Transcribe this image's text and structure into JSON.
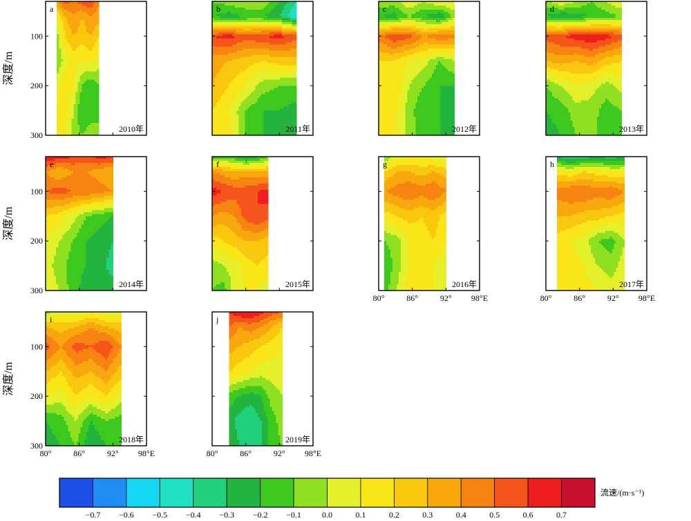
{
  "chart_data": {
    "type": "heatmap",
    "description_units": "zonal velocity",
    "ylabel": "深度/m",
    "x_ticks": [
      "80°",
      "86°",
      "92°",
      "98°E"
    ],
    "x_range": [
      80,
      98
    ],
    "y_ticks": [
      "100",
      "200",
      "300"
    ],
    "y_range": [
      30,
      300
    ],
    "y_inverted": true,
    "colorbar": {
      "label": "流速/(m·s⁻¹)",
      "ticks": [
        "−0.7",
        "−0.6",
        "−0.5",
        "−0.4",
        "−0.3",
        "−0.2",
        "−0.1",
        "0.0",
        "0.1",
        "0.2",
        "0.3",
        "0.4",
        "0.5",
        "0.6",
        "0.7"
      ],
      "levels": [
        -0.8,
        -0.7,
        -0.6,
        -0.5,
        -0.4,
        -0.3,
        -0.2,
        -0.1,
        0.0,
        0.1,
        0.2,
        0.3,
        0.4,
        0.5,
        0.6,
        0.7,
        0.8
      ],
      "colors": [
        "#1c4fe6",
        "#1e8ef6",
        "#14d6f2",
        "#1fe0c2",
        "#21d07c",
        "#22b43e",
        "#3cc81c",
        "#8ee020",
        "#e4f02a",
        "#f8e619",
        "#f9c80e",
        "#f8a80c",
        "#f78410",
        "#f5541b",
        "#ef1d1d",
        "#c8102c"
      ]
    },
    "panels": [
      {
        "label": "a",
        "year": "2010年",
        "lon_range": [
          82,
          89.5
        ],
        "depth": [
          30,
          60,
          100,
          150,
          200,
          250,
          300
        ],
        "lon": [
          82,
          83.5,
          85,
          86.5,
          88,
          89.5
        ],
        "values": [
          [
            0.4,
            0.55,
            0.45,
            0.55,
            0.6,
            0.4
          ],
          [
            0.1,
            0.3,
            0.4,
            0.3,
            0.4,
            0.35
          ],
          [
            -0.05,
            0.2,
            0.3,
            0.25,
            0.3,
            0.2
          ],
          [
            -0.1,
            0.05,
            0.15,
            0.1,
            0.15,
            0.05
          ],
          [
            0.05,
            0.2,
            0.1,
            -0.1,
            -0.2,
            -0.1
          ],
          [
            0.1,
            0.15,
            0.0,
            -0.2,
            -0.15,
            -0.1
          ],
          [
            0.1,
            0.1,
            -0.05,
            -0.1,
            -0.05,
            -0.1
          ]
        ]
      },
      {
        "label": "b",
        "year": "2011年",
        "lon_range": [
          80,
          95
        ],
        "depth": [
          30,
          60,
          100,
          150,
          200,
          250,
          300
        ],
        "lon": [
          80,
          83,
          86,
          89,
          92,
          95
        ],
        "values": [
          [
            -0.1,
            -0.05,
            0.0,
            0.0,
            -0.2,
            -0.4
          ],
          [
            -0.2,
            -0.25,
            -0.2,
            -0.2,
            -0.3,
            -0.5
          ],
          [
            0.6,
            0.65,
            0.55,
            0.6,
            0.65,
            0.55
          ],
          [
            0.35,
            0.3,
            0.25,
            0.2,
            0.25,
            0.25
          ],
          [
            0.3,
            0.2,
            0.1,
            -0.05,
            -0.1,
            -0.1
          ],
          [
            0.2,
            0.1,
            -0.1,
            -0.2,
            -0.2,
            -0.25
          ],
          [
            0.2,
            0.15,
            -0.1,
            -0.2,
            -0.25,
            -0.3
          ]
        ]
      },
      {
        "label": "c",
        "year": "2012年",
        "lon_range": [
          80,
          93.5
        ],
        "depth": [
          30,
          60,
          100,
          150,
          200,
          250,
          300
        ],
        "lon": [
          80,
          82.7,
          85.4,
          88.1,
          90.8,
          93.5
        ],
        "values": [
          [
            0.0,
            -0.05,
            0.1,
            0.0,
            0.1,
            0.1
          ],
          [
            -0.2,
            -0.25,
            -0.1,
            -0.2,
            -0.3,
            -0.05
          ],
          [
            0.45,
            0.6,
            0.55,
            0.4,
            0.5,
            0.45
          ],
          [
            0.2,
            0.2,
            0.1,
            0.05,
            -0.1,
            0.0
          ],
          [
            0.15,
            0.2,
            0.0,
            -0.1,
            -0.2,
            -0.2
          ],
          [
            0.15,
            0.15,
            -0.05,
            -0.2,
            -0.2,
            -0.25
          ],
          [
            0.2,
            0.15,
            -0.05,
            -0.15,
            -0.2,
            -0.25
          ]
        ]
      },
      {
        "label": "d",
        "year": "2013年",
        "lon_range": [
          80,
          93.5
        ],
        "depth": [
          30,
          60,
          100,
          150,
          200,
          250,
          300
        ],
        "lon": [
          80,
          82.7,
          85.4,
          88.1,
          90.8,
          93.5
        ],
        "values": [
          [
            -0.05,
            0.1,
            0.0,
            -0.1,
            0.0,
            0.1
          ],
          [
            -0.2,
            -0.3,
            -0.25,
            -0.2,
            -0.15,
            -0.1
          ],
          [
            0.55,
            0.6,
            0.65,
            0.7,
            0.65,
            0.55
          ],
          [
            0.3,
            0.35,
            0.3,
            0.35,
            0.25,
            0.2
          ],
          [
            -0.1,
            0.0,
            0.1,
            0.05,
            -0.05,
            0.05
          ],
          [
            -0.2,
            -0.15,
            -0.05,
            -0.05,
            -0.15,
            -0.1
          ],
          [
            -0.25,
            -0.2,
            -0.1,
            -0.05,
            -0.2,
            -0.15
          ]
        ]
      },
      {
        "label": "e",
        "year": "2014年",
        "lon_range": [
          80,
          92
        ],
        "depth": [
          30,
          60,
          100,
          150,
          200,
          250,
          300
        ],
        "lon": [
          80,
          82.4,
          84.8,
          87.2,
          89.6,
          92
        ],
        "values": [
          [
            0.7,
            0.65,
            0.6,
            0.55,
            0.65,
            0.6
          ],
          [
            0.4,
            0.3,
            0.4,
            0.4,
            0.35,
            0.3
          ],
          [
            0.5,
            0.55,
            0.5,
            0.5,
            0.45,
            0.4
          ],
          [
            0.2,
            0.15,
            0.05,
            -0.1,
            -0.15,
            -0.2
          ],
          [
            0.1,
            0.0,
            -0.1,
            -0.2,
            -0.25,
            -0.3
          ],
          [
            0.05,
            -0.05,
            -0.15,
            -0.2,
            -0.25,
            -0.35
          ],
          [
            0.1,
            0.0,
            -0.15,
            -0.25,
            -0.2,
            -0.25
          ]
        ]
      },
      {
        "label": "f",
        "year": "2015年",
        "lon_range": [
          80,
          90
        ],
        "depth": [
          30,
          60,
          100,
          150,
          200,
          250,
          300
        ],
        "lon": [
          80,
          82,
          84,
          86,
          88,
          90
        ],
        "values": [
          [
            -0.2,
            -0.15,
            -0.2,
            -0.35,
            -0.25,
            -0.1
          ],
          [
            0.4,
            0.35,
            0.3,
            0.35,
            0.3,
            0.3
          ],
          [
            0.65,
            0.6,
            0.55,
            0.55,
            0.6,
            0.65
          ],
          [
            0.4,
            0.35,
            0.4,
            0.55,
            0.6,
            0.55
          ],
          [
            0.15,
            0.2,
            0.25,
            0.3,
            0.3,
            0.25
          ],
          [
            -0.05,
            0.0,
            0.05,
            0.15,
            0.2,
            0.15
          ],
          [
            -0.1,
            -0.15,
            0.05,
            0.1,
            0.1,
            0.05
          ]
        ]
      },
      {
        "label": "g",
        "year": "2016年",
        "lon_range": [
          81,
          92
        ],
        "depth": [
          30,
          60,
          100,
          150,
          200,
          250,
          300
        ],
        "lon": [
          81,
          83.2,
          85.4,
          87.6,
          89.8,
          92
        ],
        "values": [
          [
            -0.1,
            0.05,
            0.1,
            0.1,
            0.05,
            0.0
          ],
          [
            0.2,
            0.3,
            0.3,
            0.25,
            0.3,
            0.25
          ],
          [
            0.4,
            0.45,
            0.5,
            0.45,
            0.5,
            0.4
          ],
          [
            0.15,
            0.2,
            0.25,
            0.2,
            0.25,
            0.15
          ],
          [
            -0.1,
            -0.05,
            0.1,
            0.15,
            0.2,
            0.1
          ],
          [
            -0.2,
            -0.05,
            0.1,
            0.15,
            0.1,
            0.05
          ],
          [
            -0.15,
            0.0,
            0.15,
            0.2,
            0.1,
            0.05
          ]
        ]
      },
      {
        "label": "h",
        "year": "2017年",
        "lon_range": [
          82,
          94
        ],
        "depth": [
          30,
          60,
          100,
          150,
          200,
          250,
          300
        ],
        "lon": [
          82,
          84.4,
          86.8,
          89.2,
          91.6,
          94
        ],
        "values": [
          [
            -0.3,
            -0.4,
            -0.35,
            -0.3,
            -0.35,
            -0.3
          ],
          [
            0.15,
            0.1,
            0.2,
            0.15,
            0.1,
            0.1
          ],
          [
            0.45,
            0.5,
            0.5,
            0.45,
            0.5,
            0.4
          ],
          [
            0.3,
            0.3,
            0.25,
            0.25,
            0.2,
            0.15
          ],
          [
            0.15,
            0.1,
            0.05,
            -0.1,
            -0.15,
            0.0
          ],
          [
            0.15,
            0.15,
            0.1,
            0.0,
            -0.05,
            0.05
          ],
          [
            0.15,
            0.2,
            0.15,
            0.1,
            0.05,
            0.1
          ]
        ]
      },
      {
        "label": "i",
        "year": "2018年",
        "lon_range": [
          80,
          93.5
        ],
        "depth": [
          30,
          60,
          100,
          150,
          200,
          250,
          300
        ],
        "lon": [
          80,
          82.7,
          85.4,
          88.1,
          90.8,
          93.5
        ],
        "values": [
          [
            -0.05,
            0.05,
            0.0,
            0.1,
            0.0,
            0.05
          ],
          [
            0.3,
            0.25,
            0.3,
            0.4,
            0.3,
            0.25
          ],
          [
            0.55,
            0.4,
            0.55,
            0.5,
            0.6,
            0.4
          ],
          [
            0.3,
            0.2,
            0.35,
            0.3,
            0.4,
            0.25
          ],
          [
            0.1,
            0.05,
            0.2,
            0.1,
            0.2,
            0.05
          ],
          [
            -0.2,
            -0.15,
            0.0,
            -0.2,
            -0.1,
            -0.15
          ],
          [
            -0.25,
            -0.2,
            -0.1,
            -0.3,
            -0.2,
            -0.15
          ]
        ]
      },
      {
        "label": "j",
        "year": "2019年",
        "lon_range": [
          83,
          92.5
        ],
        "depth": [
          30,
          60,
          100,
          150,
          200,
          250,
          300
        ],
        "lon": [
          83,
          84.9,
          86.8,
          88.7,
          90.6,
          92.5
        ],
        "values": [
          [
            0.6,
            0.7,
            0.7,
            0.65,
            0.55,
            0.5
          ],
          [
            0.5,
            0.4,
            0.45,
            0.4,
            0.3,
            0.2
          ],
          [
            0.35,
            0.3,
            0.25,
            0.2,
            0.15,
            0.1
          ],
          [
            0.2,
            0.15,
            0.1,
            0.05,
            0.05,
            0.05
          ],
          [
            -0.15,
            -0.2,
            -0.25,
            -0.2,
            -0.05,
            0.0
          ],
          [
            -0.25,
            -0.35,
            -0.4,
            -0.3,
            -0.15,
            -0.05
          ],
          [
            -0.2,
            -0.3,
            -0.35,
            -0.3,
            -0.15,
            -0.1
          ]
        ]
      }
    ]
  }
}
